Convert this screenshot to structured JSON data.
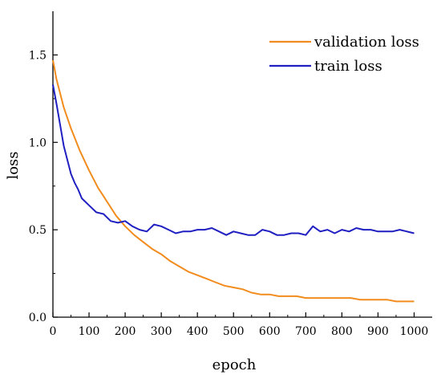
{
  "chart_data": {
    "type": "line",
    "title": "",
    "xlabel": "epoch",
    "ylabel": "loss",
    "xlim": [
      0,
      1050
    ],
    "ylim": [
      0,
      1.75
    ],
    "xticks": [
      0,
      100,
      200,
      300,
      400,
      500,
      600,
      700,
      800,
      900,
      1000
    ],
    "xtick_labels": [
      "0",
      "100",
      "200",
      "300",
      "400",
      "500",
      "600",
      "700",
      "800",
      "900",
      "1000"
    ],
    "yticks": [
      0,
      0.5,
      1.0,
      1.5
    ],
    "ytick_labels": [
      "0.0",
      "0.5",
      "1.0",
      "1.5"
    ],
    "legend_position": "top-right",
    "grid": false,
    "series": [
      {
        "name": "validation loss",
        "color": "#f28c1e",
        "x": [
          0,
          10,
          20,
          30,
          50,
          75,
          100,
          125,
          150,
          175,
          200,
          225,
          250,
          275,
          300,
          325,
          350,
          375,
          400,
          425,
          450,
          475,
          500,
          525,
          550,
          575,
          600,
          625,
          650,
          675,
          700,
          725,
          750,
          775,
          800,
          825,
          850,
          875,
          900,
          925,
          950,
          975,
          1000
        ],
        "y": [
          1.47,
          1.36,
          1.28,
          1.2,
          1.08,
          0.95,
          0.84,
          0.74,
          0.66,
          0.58,
          0.52,
          0.47,
          0.43,
          0.39,
          0.36,
          0.32,
          0.29,
          0.26,
          0.24,
          0.22,
          0.2,
          0.18,
          0.17,
          0.16,
          0.14,
          0.13,
          0.13,
          0.12,
          0.12,
          0.12,
          0.11,
          0.11,
          0.11,
          0.11,
          0.11,
          0.11,
          0.1,
          0.1,
          0.1,
          0.1,
          0.09,
          0.09,
          0.09
        ]
      },
      {
        "name": "train loss",
        "color": "#1f1fc2",
        "x": [
          0,
          10,
          20,
          30,
          40,
          50,
          60,
          70,
          80,
          100,
          120,
          140,
          160,
          180,
          200,
          220,
          240,
          260,
          280,
          300,
          320,
          340,
          360,
          380,
          400,
          420,
          440,
          460,
          480,
          500,
          520,
          540,
          560,
          580,
          600,
          620,
          640,
          660,
          680,
          700,
          720,
          740,
          760,
          780,
          800,
          820,
          840,
          860,
          880,
          900,
          920,
          940,
          960,
          980,
          1000
        ],
        "y": [
          1.33,
          1.22,
          1.1,
          0.98,
          0.9,
          0.82,
          0.77,
          0.73,
          0.68,
          0.64,
          0.6,
          0.59,
          0.55,
          0.54,
          0.55,
          0.52,
          0.5,
          0.49,
          0.53,
          0.52,
          0.5,
          0.48,
          0.49,
          0.49,
          0.5,
          0.5,
          0.51,
          0.49,
          0.47,
          0.49,
          0.48,
          0.47,
          0.47,
          0.5,
          0.49,
          0.47,
          0.47,
          0.48,
          0.48,
          0.47,
          0.52,
          0.49,
          0.5,
          0.48,
          0.5,
          0.49,
          0.51,
          0.5,
          0.5,
          0.49,
          0.49,
          0.49,
          0.5,
          0.49,
          0.48
        ]
      }
    ]
  }
}
